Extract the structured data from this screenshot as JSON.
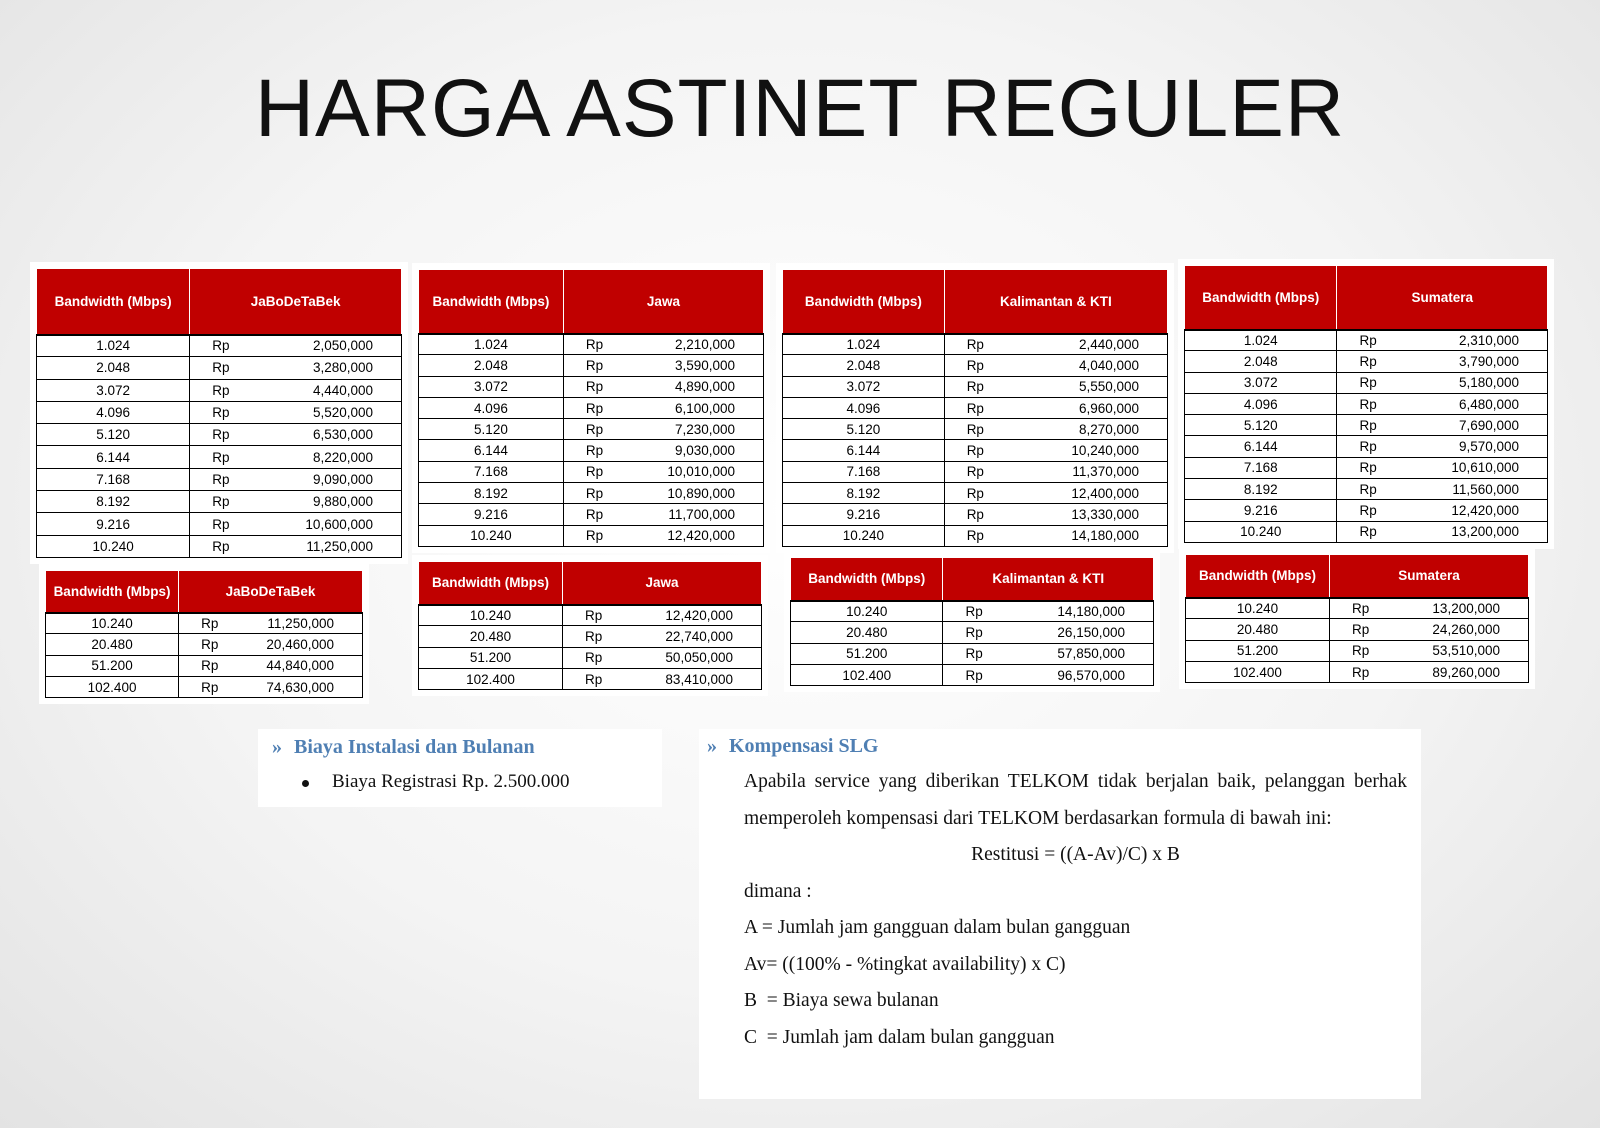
{
  "title": "HARGA ASTINET REGULER",
  "tables": [
    {
      "header": [
        "Bandwidth (Mbps)",
        "JaBoDeTaBek"
      ],
      "rows": [
        [
          "1.024",
          "Rp",
          "2,050,000"
        ],
        [
          "2.048",
          "Rp",
          "3,280,000"
        ],
        [
          "3.072",
          "Rp",
          "4,440,000"
        ],
        [
          "4.096",
          "Rp",
          "5,520,000"
        ],
        [
          "5.120",
          "Rp",
          "6,530,000"
        ],
        [
          "6.144",
          "Rp",
          "8,220,000"
        ],
        [
          "7.168",
          "Rp",
          "9,090,000"
        ],
        [
          "8.192",
          "Rp",
          "9,880,000"
        ],
        [
          "9.216",
          "Rp",
          "10,600,000"
        ],
        [
          "10.240",
          "Rp",
          "11,250,000"
        ]
      ]
    },
    {
      "header": [
        "Bandwidth (Mbps)",
        "Jawa"
      ],
      "rows": [
        [
          "1.024",
          "Rp",
          "2,210,000"
        ],
        [
          "2.048",
          "Rp",
          "3,590,000"
        ],
        [
          "3.072",
          "Rp",
          "4,890,000"
        ],
        [
          "4.096",
          "Rp",
          "6,100,000"
        ],
        [
          "5.120",
          "Rp",
          "7,230,000"
        ],
        [
          "6.144",
          "Rp",
          "9,030,000"
        ],
        [
          "7.168",
          "Rp",
          "10,010,000"
        ],
        [
          "8.192",
          "Rp",
          "10,890,000"
        ],
        [
          "9.216",
          "Rp",
          "11,700,000"
        ],
        [
          "10.240",
          "Rp",
          "12,420,000"
        ]
      ]
    },
    {
      "header": [
        "Bandwidth (Mbps)",
        "Kalimantan & KTI"
      ],
      "rows": [
        [
          "1.024",
          "Rp",
          "2,440,000"
        ],
        [
          "2.048",
          "Rp",
          "4,040,000"
        ],
        [
          "3.072",
          "Rp",
          "5,550,000"
        ],
        [
          "4.096",
          "Rp",
          "6,960,000"
        ],
        [
          "5.120",
          "Rp",
          "8,270,000"
        ],
        [
          "6.144",
          "Rp",
          "10,240,000"
        ],
        [
          "7.168",
          "Rp",
          "11,370,000"
        ],
        [
          "8.192",
          "Rp",
          "12,400,000"
        ],
        [
          "9.216",
          "Rp",
          "13,330,000"
        ],
        [
          "10.240",
          "Rp",
          "14,180,000"
        ]
      ]
    },
    {
      "header": [
        "Bandwidth (Mbps)",
        "Sumatera"
      ],
      "rows": [
        [
          "1.024",
          "Rp",
          "2,310,000"
        ],
        [
          "2.048",
          "Rp",
          "3,790,000"
        ],
        [
          "3.072",
          "Rp",
          "5,180,000"
        ],
        [
          "4.096",
          "Rp",
          "6,480,000"
        ],
        [
          "5.120",
          "Rp",
          "7,690,000"
        ],
        [
          "6.144",
          "Rp",
          "9,570,000"
        ],
        [
          "7.168",
          "Rp",
          "10,610,000"
        ],
        [
          "8.192",
          "Rp",
          "11,560,000"
        ],
        [
          "9.216",
          "Rp",
          "12,420,000"
        ],
        [
          "10.240",
          "Rp",
          "13,200,000"
        ]
      ]
    },
    {
      "header": [
        "Bandwidth (Mbps)",
        "JaBoDeTaBek"
      ],
      "rows": [
        [
          "10.240",
          "Rp",
          "11,250,000"
        ],
        [
          "20.480",
          "Rp",
          "20,460,000"
        ],
        [
          "51.200",
          "Rp",
          "44,840,000"
        ],
        [
          "102.400",
          "Rp",
          "74,630,000"
        ]
      ]
    },
    {
      "header": [
        "Bandwidth (Mbps)",
        "Jawa"
      ],
      "rows": [
        [
          "10.240",
          "Rp",
          "12,420,000"
        ],
        [
          "20.480",
          "Rp",
          "22,740,000"
        ],
        [
          "51.200",
          "Rp",
          "50,050,000"
        ],
        [
          "102.400",
          "Rp",
          "83,410,000"
        ]
      ]
    },
    {
      "header": [
        "Bandwidth (Mbps)",
        "Kalimantan & KTI"
      ],
      "rows": [
        [
          "10.240",
          "Rp",
          "14,180,000"
        ],
        [
          "20.480",
          "Rp",
          "26,150,000"
        ],
        [
          "51.200",
          "Rp",
          "57,850,000"
        ],
        [
          "102.400",
          "Rp",
          "96,570,000"
        ]
      ]
    },
    {
      "header": [
        "Bandwidth (Mbps)",
        "Sumatera"
      ],
      "rows": [
        [
          "10.240",
          "Rp",
          "13,200,000"
        ],
        [
          "20.480",
          "Rp",
          "24,260,000"
        ],
        [
          "51.200",
          "Rp",
          "53,510,000"
        ],
        [
          "102.400",
          "Rp",
          "89,260,000"
        ]
      ]
    }
  ],
  "sections": [
    {
      "marker": "»",
      "heading": "Biaya Instalasi dan Bulanan",
      "bullets": [
        "Biaya Registrasi Rp. 2.500.000"
      ]
    },
    {
      "marker": "»",
      "heading": "Kompensasi SLG",
      "paragraph": "Apabila service yang diberikan TELKOM tidak berjalan baik, pelanggan berhak memperoleh kompensasi dari TELKOM berdasarkan formula di bawah ini:",
      "formula": "Restitusi = ((A-Av)/C) x B",
      "lines": [
        "dimana :",
        "A = Jumlah jam gangguan dalam bulan gangguan",
        "Av= ((100% - %tingkat availability) x C)",
        "B  = Biaya sewa bulanan",
        "C  = Jumlah jam dalam bulan gangguan"
      ]
    }
  ]
}
